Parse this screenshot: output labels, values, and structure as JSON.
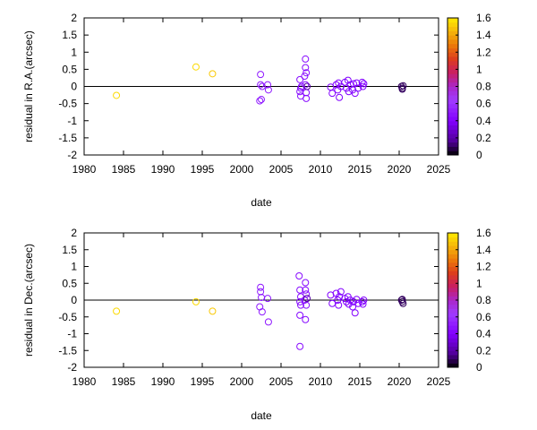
{
  "chart_data": [
    {
      "type": "scatter",
      "xlabel": "date",
      "ylabel": "residual in R.A.(arcsec)",
      "xlim": [
        1980,
        2025
      ],
      "ylim": [
        -2,
        2
      ],
      "xticks": [
        "1980",
        "1985",
        "1990",
        "1995",
        "2000",
        "2005",
        "2010",
        "2015",
        "2020",
        "2025"
      ],
      "yticks": [
        "2",
        "1.5",
        "1",
        "0.5",
        "0",
        "-0.5",
        "-1",
        "-1.5",
        "-2"
      ],
      "zero_line": true,
      "colorbar": {
        "range": [
          0,
          1.6
        ],
        "ticks": [
          "1.6",
          "1.4",
          "1.2",
          "1",
          "0.8",
          "0.6",
          "0.4",
          "0.2",
          "0"
        ]
      },
      "points": [
        {
          "x": 1984.1,
          "y": -0.26,
          "c": 1.55
        },
        {
          "x": 1994.2,
          "y": 0.57,
          "c": 1.55
        },
        {
          "x": 1996.3,
          "y": 0.37,
          "c": 1.5
        },
        {
          "x": 2002.4,
          "y": 0.35,
          "c": 0.5
        },
        {
          "x": 2002.4,
          "y": 0.05,
          "c": 0.5
        },
        {
          "x": 2002.5,
          "y": -0.38,
          "c": 0.5
        },
        {
          "x": 2002.3,
          "y": -0.42,
          "c": 0.5
        },
        {
          "x": 2002.6,
          "y": 0.0,
          "c": 0.5
        },
        {
          "x": 2003.3,
          "y": 0.05,
          "c": 0.5
        },
        {
          "x": 2003.4,
          "y": -0.1,
          "c": 0.5
        },
        {
          "x": 2007.4,
          "y": 0.2,
          "c": 0.45
        },
        {
          "x": 2007.5,
          "y": -0.05,
          "c": 0.45
        },
        {
          "x": 2007.4,
          "y": -0.15,
          "c": 0.45
        },
        {
          "x": 2007.5,
          "y": -0.28,
          "c": 0.45
        },
        {
          "x": 2007.6,
          "y": 0.0,
          "c": 0.45
        },
        {
          "x": 2008.1,
          "y": 0.8,
          "c": 0.45
        },
        {
          "x": 2008.1,
          "y": 0.55,
          "c": 0.45
        },
        {
          "x": 2008.2,
          "y": 0.4,
          "c": 0.45
        },
        {
          "x": 2008.0,
          "y": 0.3,
          "c": 0.45
        },
        {
          "x": 2008.1,
          "y": 0.05,
          "c": 0.45
        },
        {
          "x": 2008.2,
          "y": -0.18,
          "c": 0.45
        },
        {
          "x": 2008.2,
          "y": -0.35,
          "c": 0.45
        },
        {
          "x": 2008.3,
          "y": 0.0,
          "c": 0.2
        },
        {
          "x": 2011.3,
          "y": -0.02,
          "c": 0.4
        },
        {
          "x": 2011.5,
          "y": -0.2,
          "c": 0.4
        },
        {
          "x": 2012.0,
          "y": 0.05,
          "c": 0.4
        },
        {
          "x": 2012.2,
          "y": -0.1,
          "c": 0.4
        },
        {
          "x": 2012.3,
          "y": 0.1,
          "c": 0.4
        },
        {
          "x": 2012.4,
          "y": -0.32,
          "c": 0.4
        },
        {
          "x": 2012.6,
          "y": 0.0,
          "c": 0.4
        },
        {
          "x": 2013.1,
          "y": 0.12,
          "c": 0.4
        },
        {
          "x": 2013.3,
          "y": -0.05,
          "c": 0.4
        },
        {
          "x": 2013.5,
          "y": 0.18,
          "c": 0.4
        },
        {
          "x": 2013.6,
          "y": -0.15,
          "c": 0.4
        },
        {
          "x": 2013.8,
          "y": 0.05,
          "c": 0.4
        },
        {
          "x": 2014.1,
          "y": -0.1,
          "c": 0.4
        },
        {
          "x": 2014.2,
          "y": 0.08,
          "c": 0.4
        },
        {
          "x": 2014.4,
          "y": -0.2,
          "c": 0.4
        },
        {
          "x": 2014.6,
          "y": 0.1,
          "c": 0.4
        },
        {
          "x": 2014.8,
          "y": -0.05,
          "c": 0.4
        },
        {
          "x": 2015.3,
          "y": 0.12,
          "c": 0.4
        },
        {
          "x": 2015.4,
          "y": 0.0,
          "c": 0.4
        },
        {
          "x": 2015.5,
          "y": 0.08,
          "c": 0.4
        },
        {
          "x": 2020.3,
          "y": 0.0,
          "c": 0.1
        },
        {
          "x": 2020.4,
          "y": -0.05,
          "c": 0.1
        },
        {
          "x": 2020.5,
          "y": 0.02,
          "c": 0.1
        },
        {
          "x": 2020.4,
          "y": -0.08,
          "c": 0.1
        }
      ]
    },
    {
      "type": "scatter",
      "xlabel": "date",
      "ylabel": "residual in Dec.(arcsec)",
      "xlim": [
        1980,
        2025
      ],
      "ylim": [
        -2,
        2
      ],
      "xticks": [
        "1980",
        "1985",
        "1990",
        "1995",
        "2000",
        "2005",
        "2010",
        "2015",
        "2020",
        "2025"
      ],
      "yticks": [
        "2",
        "1.5",
        "1",
        "0.5",
        "0",
        "-0.5",
        "-1",
        "-1.5",
        "-2"
      ],
      "zero_line": true,
      "colorbar": {
        "range": [
          0,
          1.6
        ],
        "ticks": [
          "1.6",
          "1.4",
          "1.2",
          "1",
          "0.8",
          "0.6",
          "0.4",
          "0.2",
          "0"
        ]
      },
      "points": [
        {
          "x": 1984.1,
          "y": -0.33,
          "c": 1.55
        },
        {
          "x": 1994.2,
          "y": -0.05,
          "c": 1.55
        },
        {
          "x": 1996.3,
          "y": -0.33,
          "c": 1.5
        },
        {
          "x": 2002.4,
          "y": 0.38,
          "c": 0.5
        },
        {
          "x": 2002.4,
          "y": 0.25,
          "c": 0.5
        },
        {
          "x": 2002.5,
          "y": 0.08,
          "c": 0.5
        },
        {
          "x": 2002.3,
          "y": -0.2,
          "c": 0.5
        },
        {
          "x": 2002.6,
          "y": -0.35,
          "c": 0.5
        },
        {
          "x": 2003.3,
          "y": 0.05,
          "c": 0.5
        },
        {
          "x": 2003.4,
          "y": -0.65,
          "c": 0.5
        },
        {
          "x": 2007.3,
          "y": 0.72,
          "c": 0.45
        },
        {
          "x": 2007.4,
          "y": 0.3,
          "c": 0.45
        },
        {
          "x": 2007.5,
          "y": 0.1,
          "c": 0.45
        },
        {
          "x": 2007.4,
          "y": -0.05,
          "c": 0.45
        },
        {
          "x": 2007.5,
          "y": -0.15,
          "c": 0.45
        },
        {
          "x": 2007.4,
          "y": -0.45,
          "c": 0.45
        },
        {
          "x": 2007.4,
          "y": -1.38,
          "c": 0.45
        },
        {
          "x": 2008.1,
          "y": 0.52,
          "c": 0.45
        },
        {
          "x": 2008.1,
          "y": 0.3,
          "c": 0.45
        },
        {
          "x": 2008.2,
          "y": 0.18,
          "c": 0.45
        },
        {
          "x": 2008.0,
          "y": 0.0,
          "c": 0.45
        },
        {
          "x": 2008.2,
          "y": -0.15,
          "c": 0.45
        },
        {
          "x": 2008.1,
          "y": -0.58,
          "c": 0.45
        },
        {
          "x": 2008.3,
          "y": 0.05,
          "c": 0.2
        },
        {
          "x": 2011.3,
          "y": 0.15,
          "c": 0.4
        },
        {
          "x": 2011.5,
          "y": -0.1,
          "c": 0.4
        },
        {
          "x": 2012.0,
          "y": 0.2,
          "c": 0.4
        },
        {
          "x": 2012.2,
          "y": 0.0,
          "c": 0.4
        },
        {
          "x": 2012.3,
          "y": -0.15,
          "c": 0.4
        },
        {
          "x": 2012.4,
          "y": 0.1,
          "c": 0.4
        },
        {
          "x": 2012.6,
          "y": 0.25,
          "c": 0.4
        },
        {
          "x": 2013.1,
          "y": 0.05,
          "c": 0.4
        },
        {
          "x": 2013.3,
          "y": -0.05,
          "c": 0.4
        },
        {
          "x": 2013.5,
          "y": 0.1,
          "c": 0.4
        },
        {
          "x": 2013.6,
          "y": -0.12,
          "c": 0.4
        },
        {
          "x": 2013.8,
          "y": 0.0,
          "c": 0.4
        },
        {
          "x": 2014.1,
          "y": -0.2,
          "c": 0.4
        },
        {
          "x": 2014.2,
          "y": -0.05,
          "c": 0.4
        },
        {
          "x": 2014.4,
          "y": -0.38,
          "c": 0.4
        },
        {
          "x": 2014.6,
          "y": 0.02,
          "c": 0.4
        },
        {
          "x": 2014.8,
          "y": -0.1,
          "c": 0.4
        },
        {
          "x": 2015.3,
          "y": -0.05,
          "c": 0.4
        },
        {
          "x": 2015.4,
          "y": -0.12,
          "c": 0.4
        },
        {
          "x": 2015.5,
          "y": 0.0,
          "c": 0.4
        },
        {
          "x": 2020.3,
          "y": 0.0,
          "c": 0.1
        },
        {
          "x": 2020.4,
          "y": -0.05,
          "c": 0.1
        },
        {
          "x": 2020.5,
          "y": -0.1,
          "c": 0.1
        },
        {
          "x": 2020.4,
          "y": 0.02,
          "c": 0.1
        }
      ]
    }
  ]
}
